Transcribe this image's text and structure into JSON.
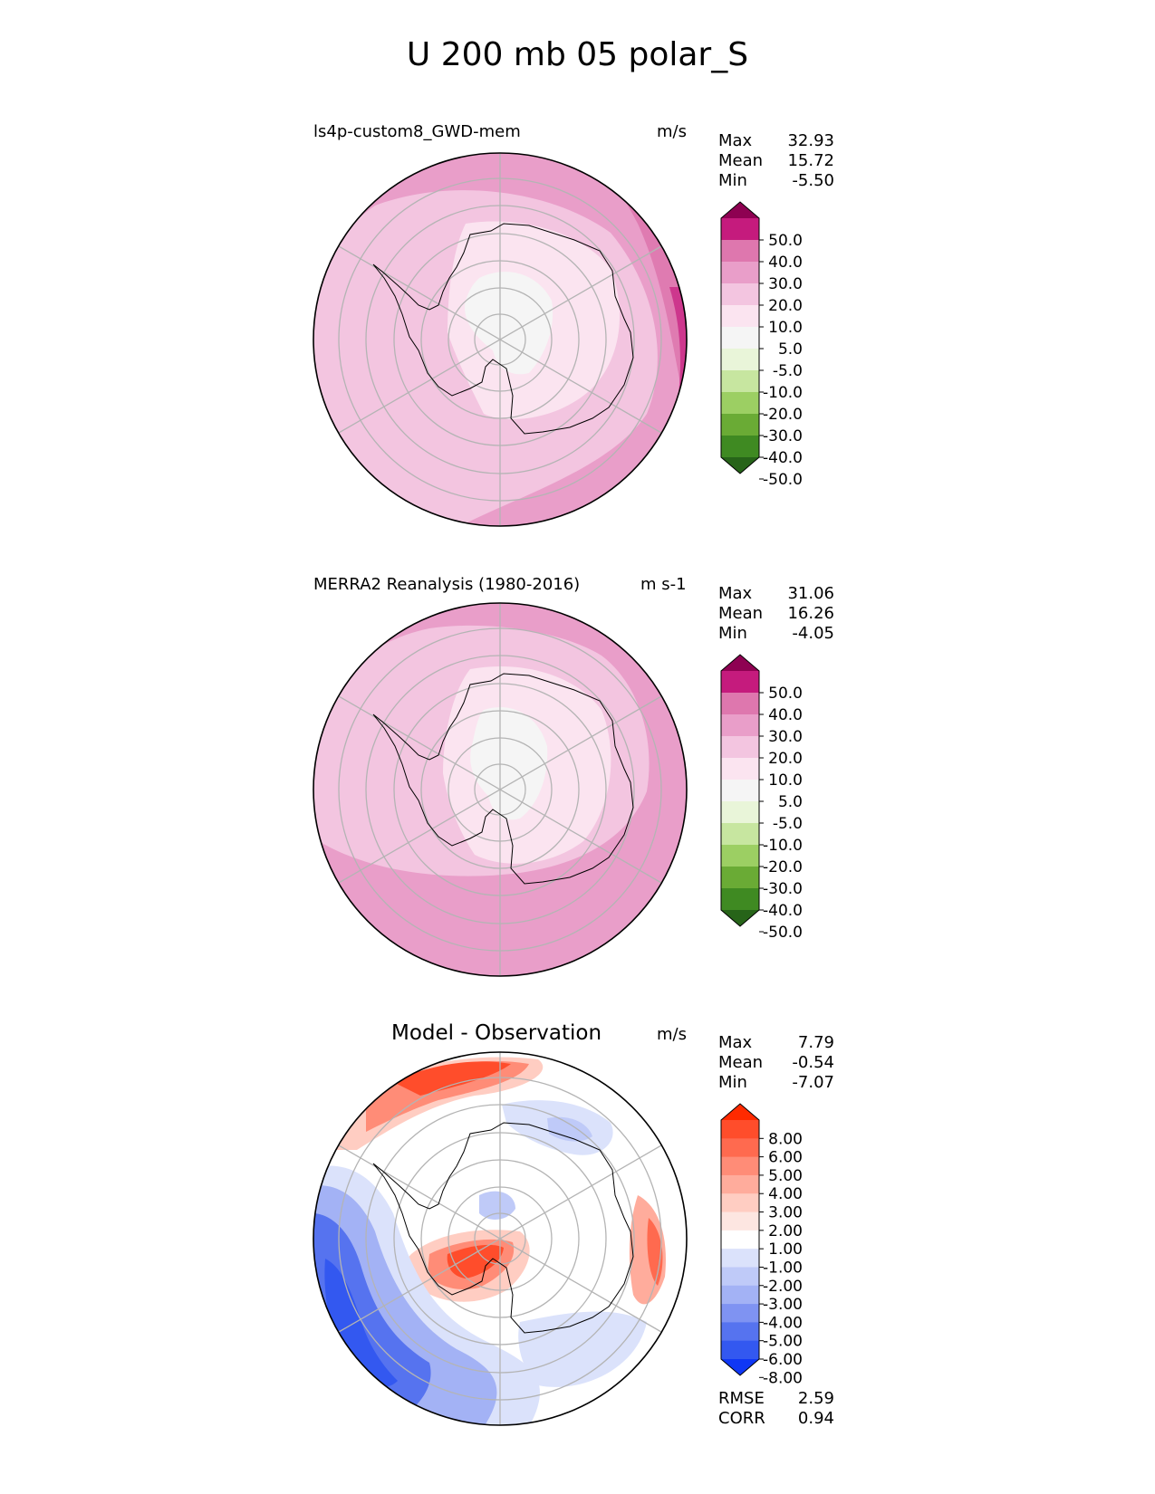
{
  "title": "U 200 mb 05 polar_S",
  "panels": [
    {
      "id": "model",
      "left_title": "ls4p-custom8_GWD-mem",
      "units": "m/s",
      "stats": [
        [
          "Max",
          "32.93"
        ],
        [
          "Mean",
          "15.72"
        ],
        [
          "Min",
          "-5.50"
        ]
      ],
      "colorbar": {
        "labels": [
          "50.0",
          "40.0",
          "30.0",
          "20.0",
          "10.0",
          "5.0",
          "-5.0",
          "-10.0",
          "-20.0",
          "-30.0",
          "-40.0",
          "-50.0"
        ],
        "colors": [
          "#8e0152",
          "#c51b7d",
          "#de77ae",
          "#e99ec9",
          "#f3c5e0",
          "#fbe4f0",
          "#f5f5f5",
          "#e9f5d9",
          "#c7e6a0",
          "#9ccf63",
          "#6aab35",
          "#3f8a22",
          "#276419"
        ]
      }
    },
    {
      "id": "obs",
      "left_title": "MERRA2 Reanalysis (1980-2016)",
      "units": "m s-1",
      "stats": [
        [
          "Max",
          "31.06"
        ],
        [
          "Mean",
          "16.26"
        ],
        [
          "Min",
          "-4.05"
        ]
      ],
      "colorbar": {
        "labels": [
          "50.0",
          "40.0",
          "30.0",
          "20.0",
          "10.0",
          "5.0",
          "-5.0",
          "-10.0",
          "-20.0",
          "-30.0",
          "-40.0",
          "-50.0"
        ],
        "colors": [
          "#8e0152",
          "#c51b7d",
          "#de77ae",
          "#e99ec9",
          "#f3c5e0",
          "#fbe4f0",
          "#f5f5f5",
          "#e9f5d9",
          "#c7e6a0",
          "#9ccf63",
          "#6aab35",
          "#3f8a22",
          "#276419"
        ]
      }
    },
    {
      "id": "diff",
      "center_title": "Model - Observation",
      "units": "m/s",
      "stats": [
        [
          "Max",
          "7.79"
        ],
        [
          "Mean",
          "-0.54"
        ],
        [
          "Min",
          "-7.07"
        ]
      ],
      "extra_stats": [
        [
          "RMSE",
          "2.59"
        ],
        [
          "CORR",
          "0.94"
        ]
      ],
      "colorbar": {
        "labels": [
          "8.00",
          "6.00",
          "5.00",
          "4.00",
          "3.00",
          "2.00",
          "1.00",
          "-1.00",
          "-2.00",
          "-3.00",
          "-4.00",
          "-5.00",
          "-6.00",
          "-8.00"
        ],
        "colors": [
          "#ff2a00",
          "#ff4d2b",
          "#ff6a4f",
          "#ff8c77",
          "#ffac9c",
          "#ffcdc2",
          "#fde6e1",
          "#ffffff",
          "#dbe2fb",
          "#bfcaf8",
          "#a3b2f5",
          "#7f93f2",
          "#5673ef",
          "#3358f0",
          "#0f37f5"
        ]
      }
    }
  ]
}
